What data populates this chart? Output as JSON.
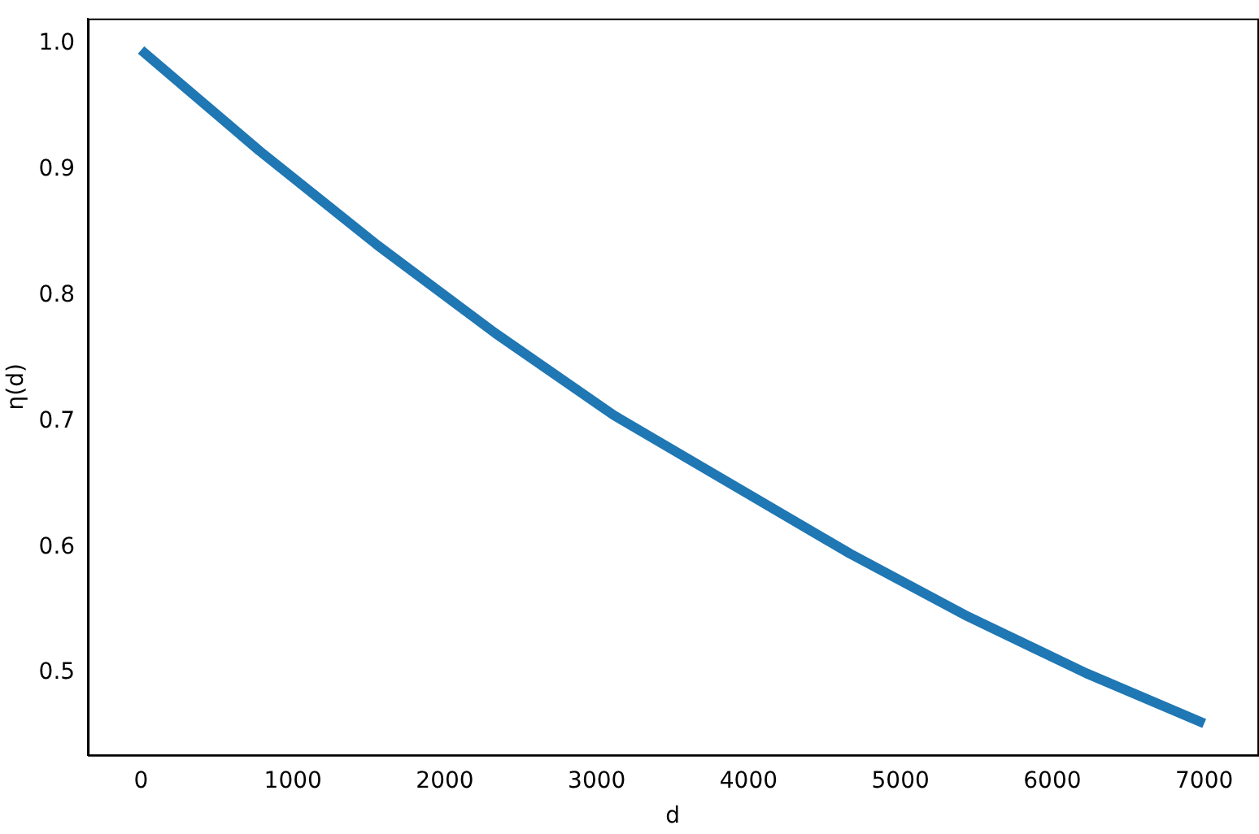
{
  "chart_data": {
    "type": "line",
    "xlabel": "d",
    "ylabel": "η(d)",
    "x": [
      0,
      778,
      1556,
      2333,
      3111,
      3889,
      4667,
      5444,
      6222,
      7000
    ],
    "series": [
      {
        "color": "#1f77b4",
        "values": [
          0.995,
          0.915,
          0.84,
          0.77,
          0.705,
          0.65,
          0.595,
          0.545,
          0.5,
          0.46
        ]
      }
    ],
    "xlim": [
      -350,
      7350
    ],
    "ylim": [
      0.435,
      1.02
    ],
    "xticks": [
      0,
      1000,
      2000,
      3000,
      4000,
      5000,
      6000,
      7000
    ],
    "yticks": [
      {
        "value": 0.5,
        "label": "0.5"
      },
      {
        "value": 0.6,
        "label": "0.6"
      },
      {
        "value": 0.7,
        "label": "0.7"
      },
      {
        "value": 0.8,
        "label": "0.8"
      },
      {
        "value": 0.9,
        "label": "0.9"
      },
      {
        "value": 1.0,
        "label": "1.0"
      }
    ],
    "grid": false,
    "legend": false,
    "marker": "none",
    "line_style": "solid"
  }
}
